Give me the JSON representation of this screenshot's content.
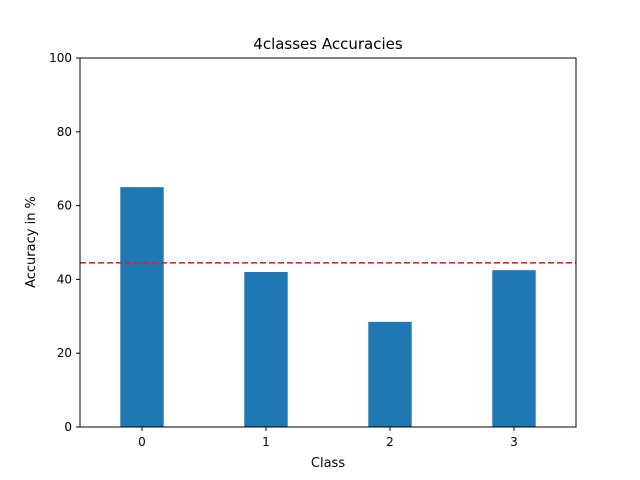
{
  "chart_data": {
    "type": "bar",
    "title": "4classes Accuracies",
    "xlabel": "Class",
    "ylabel": "Accuracy in %",
    "categories": [
      "0",
      "1",
      "2",
      "3"
    ],
    "values": [
      65.0,
      42.0,
      28.5,
      42.5
    ],
    "ylim": [
      0,
      100
    ],
    "yticks": [
      0,
      20,
      40,
      60,
      80,
      100
    ],
    "bar_color": "#1f77b4",
    "reference_line": {
      "value": 44.5,
      "color": "#d62728",
      "style": "dashed"
    },
    "grid": false,
    "legend": "none"
  }
}
